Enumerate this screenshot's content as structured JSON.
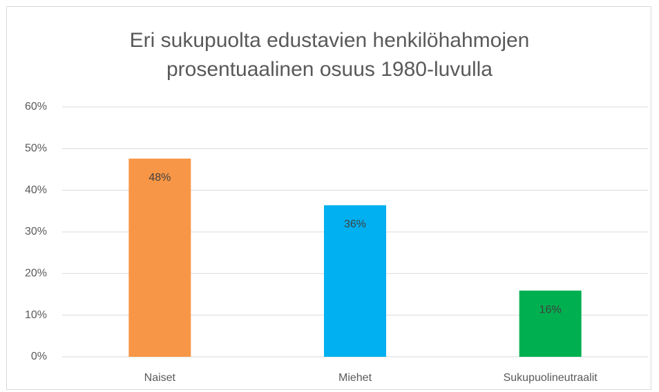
{
  "chart_data": {
    "type": "bar",
    "title": "Eri sukupuolta edustavien henkilöhahmojen prosentuaalinen osuus 1980-luvulla",
    "categories": [
      "Naiset",
      "Miehet",
      "Sukupuolineutraalit"
    ],
    "values": [
      47.6,
      36.4,
      15.9
    ],
    "value_labels": [
      "48%",
      "36%",
      "16%"
    ],
    "colors": [
      "#f79646",
      "#00b0f0",
      "#00b050"
    ],
    "ylim": [
      0,
      60
    ],
    "yticks": [
      {
        "value": 0,
        "label": "0%"
      },
      {
        "value": 10,
        "label": "10%"
      },
      {
        "value": 20,
        "label": "20%"
      },
      {
        "value": 30,
        "label": "30%"
      },
      {
        "value": 40,
        "label": "40%"
      },
      {
        "value": 50,
        "label": "50%"
      },
      {
        "value": 60,
        "label": "60%"
      }
    ],
    "grid": true
  }
}
